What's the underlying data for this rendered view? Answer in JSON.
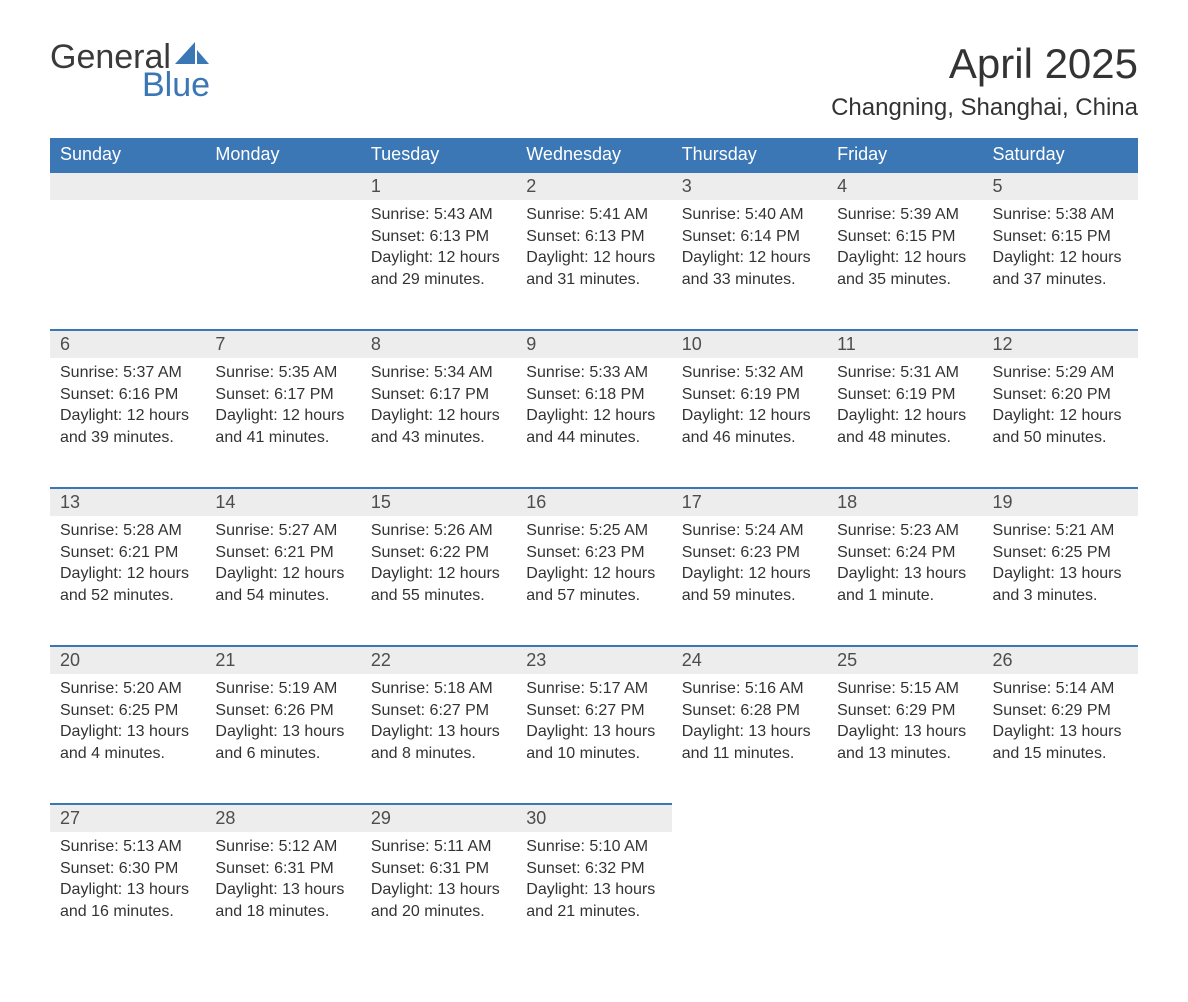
{
  "brand": {
    "word1": "General",
    "word2": "Blue",
    "accent_color": "#3b77b5",
    "text_color": "#3a3a3a"
  },
  "title": "April 2025",
  "location": "Changning, Shanghai, China",
  "colors": {
    "header_bg": "#3b77b5",
    "header_text": "#ffffff",
    "daynum_bg": "#ededed",
    "rule": "#3b77b5",
    "body_text": "#333333"
  },
  "weekdays": [
    "Sunday",
    "Monday",
    "Tuesday",
    "Wednesday",
    "Thursday",
    "Friday",
    "Saturday"
  ],
  "weeks": [
    {
      "days": [
        null,
        null,
        {
          "n": "1",
          "sunrise": "Sunrise: 5:43 AM",
          "sunset": "Sunset: 6:13 PM",
          "dl1": "Daylight: 12 hours",
          "dl2": "and 29 minutes."
        },
        {
          "n": "2",
          "sunrise": "Sunrise: 5:41 AM",
          "sunset": "Sunset: 6:13 PM",
          "dl1": "Daylight: 12 hours",
          "dl2": "and 31 minutes."
        },
        {
          "n": "3",
          "sunrise": "Sunrise: 5:40 AM",
          "sunset": "Sunset: 6:14 PM",
          "dl1": "Daylight: 12 hours",
          "dl2": "and 33 minutes."
        },
        {
          "n": "4",
          "sunrise": "Sunrise: 5:39 AM",
          "sunset": "Sunset: 6:15 PM",
          "dl1": "Daylight: 12 hours",
          "dl2": "and 35 minutes."
        },
        {
          "n": "5",
          "sunrise": "Sunrise: 5:38 AM",
          "sunset": "Sunset: 6:15 PM",
          "dl1": "Daylight: 12 hours",
          "dl2": "and 37 minutes."
        }
      ]
    },
    {
      "days": [
        {
          "n": "6",
          "sunrise": "Sunrise: 5:37 AM",
          "sunset": "Sunset: 6:16 PM",
          "dl1": "Daylight: 12 hours",
          "dl2": "and 39 minutes."
        },
        {
          "n": "7",
          "sunrise": "Sunrise: 5:35 AM",
          "sunset": "Sunset: 6:17 PM",
          "dl1": "Daylight: 12 hours",
          "dl2": "and 41 minutes."
        },
        {
          "n": "8",
          "sunrise": "Sunrise: 5:34 AM",
          "sunset": "Sunset: 6:17 PM",
          "dl1": "Daylight: 12 hours",
          "dl2": "and 43 minutes."
        },
        {
          "n": "9",
          "sunrise": "Sunrise: 5:33 AM",
          "sunset": "Sunset: 6:18 PM",
          "dl1": "Daylight: 12 hours",
          "dl2": "and 44 minutes."
        },
        {
          "n": "10",
          "sunrise": "Sunrise: 5:32 AM",
          "sunset": "Sunset: 6:19 PM",
          "dl1": "Daylight: 12 hours",
          "dl2": "and 46 minutes."
        },
        {
          "n": "11",
          "sunrise": "Sunrise: 5:31 AM",
          "sunset": "Sunset: 6:19 PM",
          "dl1": "Daylight: 12 hours",
          "dl2": "and 48 minutes."
        },
        {
          "n": "12",
          "sunrise": "Sunrise: 5:29 AM",
          "sunset": "Sunset: 6:20 PM",
          "dl1": "Daylight: 12 hours",
          "dl2": "and 50 minutes."
        }
      ]
    },
    {
      "days": [
        {
          "n": "13",
          "sunrise": "Sunrise: 5:28 AM",
          "sunset": "Sunset: 6:21 PM",
          "dl1": "Daylight: 12 hours",
          "dl2": "and 52 minutes."
        },
        {
          "n": "14",
          "sunrise": "Sunrise: 5:27 AM",
          "sunset": "Sunset: 6:21 PM",
          "dl1": "Daylight: 12 hours",
          "dl2": "and 54 minutes."
        },
        {
          "n": "15",
          "sunrise": "Sunrise: 5:26 AM",
          "sunset": "Sunset: 6:22 PM",
          "dl1": "Daylight: 12 hours",
          "dl2": "and 55 minutes."
        },
        {
          "n": "16",
          "sunrise": "Sunrise: 5:25 AM",
          "sunset": "Sunset: 6:23 PM",
          "dl1": "Daylight: 12 hours",
          "dl2": "and 57 minutes."
        },
        {
          "n": "17",
          "sunrise": "Sunrise: 5:24 AM",
          "sunset": "Sunset: 6:23 PM",
          "dl1": "Daylight: 12 hours",
          "dl2": "and 59 minutes."
        },
        {
          "n": "18",
          "sunrise": "Sunrise: 5:23 AM",
          "sunset": "Sunset: 6:24 PM",
          "dl1": "Daylight: 13 hours",
          "dl2": "and 1 minute."
        },
        {
          "n": "19",
          "sunrise": "Sunrise: 5:21 AM",
          "sunset": "Sunset: 6:25 PM",
          "dl1": "Daylight: 13 hours",
          "dl2": "and 3 minutes."
        }
      ]
    },
    {
      "days": [
        {
          "n": "20",
          "sunrise": "Sunrise: 5:20 AM",
          "sunset": "Sunset: 6:25 PM",
          "dl1": "Daylight: 13 hours",
          "dl2": "and 4 minutes."
        },
        {
          "n": "21",
          "sunrise": "Sunrise: 5:19 AM",
          "sunset": "Sunset: 6:26 PM",
          "dl1": "Daylight: 13 hours",
          "dl2": "and 6 minutes."
        },
        {
          "n": "22",
          "sunrise": "Sunrise: 5:18 AM",
          "sunset": "Sunset: 6:27 PM",
          "dl1": "Daylight: 13 hours",
          "dl2": "and 8 minutes."
        },
        {
          "n": "23",
          "sunrise": "Sunrise: 5:17 AM",
          "sunset": "Sunset: 6:27 PM",
          "dl1": "Daylight: 13 hours",
          "dl2": "and 10 minutes."
        },
        {
          "n": "24",
          "sunrise": "Sunrise: 5:16 AM",
          "sunset": "Sunset: 6:28 PM",
          "dl1": "Daylight: 13 hours",
          "dl2": "and 11 minutes."
        },
        {
          "n": "25",
          "sunrise": "Sunrise: 5:15 AM",
          "sunset": "Sunset: 6:29 PM",
          "dl1": "Daylight: 13 hours",
          "dl2": "and 13 minutes."
        },
        {
          "n": "26",
          "sunrise": "Sunrise: 5:14 AM",
          "sunset": "Sunset: 6:29 PM",
          "dl1": "Daylight: 13 hours",
          "dl2": "and 15 minutes."
        }
      ]
    },
    {
      "days": [
        {
          "n": "27",
          "sunrise": "Sunrise: 5:13 AM",
          "sunset": "Sunset: 6:30 PM",
          "dl1": "Daylight: 13 hours",
          "dl2": "and 16 minutes."
        },
        {
          "n": "28",
          "sunrise": "Sunrise: 5:12 AM",
          "sunset": "Sunset: 6:31 PM",
          "dl1": "Daylight: 13 hours",
          "dl2": "and 18 minutes."
        },
        {
          "n": "29",
          "sunrise": "Sunrise: 5:11 AM",
          "sunset": "Sunset: 6:31 PM",
          "dl1": "Daylight: 13 hours",
          "dl2": "and 20 minutes."
        },
        {
          "n": "30",
          "sunrise": "Sunrise: 5:10 AM",
          "sunset": "Sunset: 6:32 PM",
          "dl1": "Daylight: 13 hours",
          "dl2": "and 21 minutes."
        },
        null,
        null,
        null
      ]
    }
  ]
}
